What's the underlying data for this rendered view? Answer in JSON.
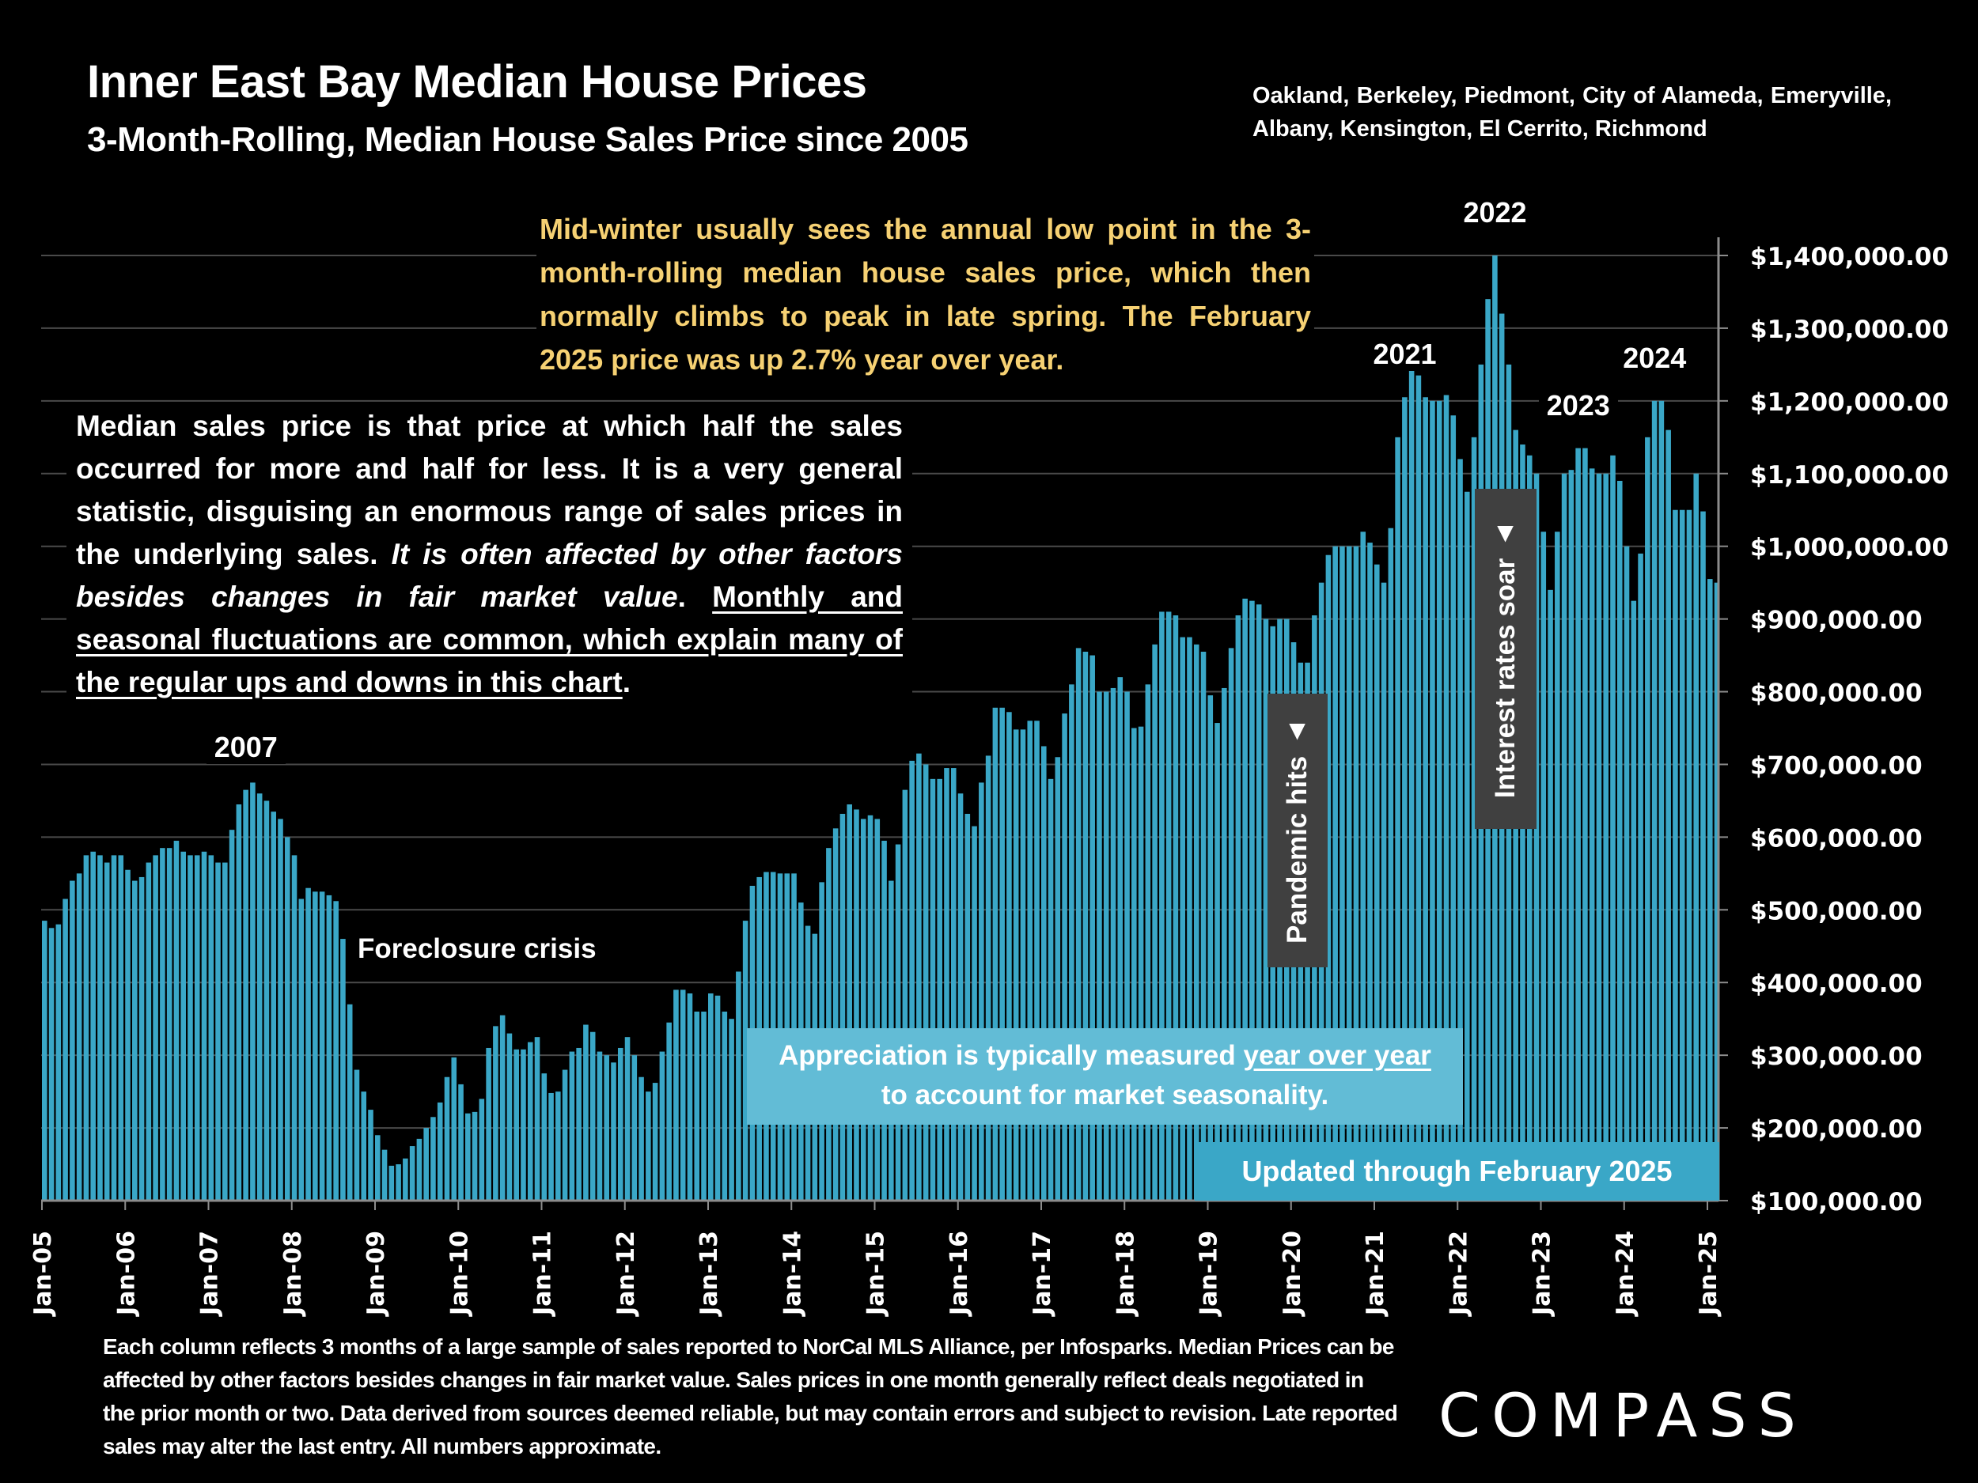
{
  "header": {
    "title": "Inner East Bay Median House Prices",
    "subtitle": "3-Month-Rolling, Median House Sales Price since 2005",
    "regions": "Oakland, Berkeley, Piedmont, City of Alameda, Emeryville, Albany, Kensington, El Cerrito, Richmond"
  },
  "annotations": {
    "seasonal_note": "Mid-winter usually sees the annual low point in the 3-month-rolling median house sales price, which then normally climbs to peak in late spring. The February 2025 price was up 2.7% year over year.",
    "median_note_plain": "Median sales price is that price at which half the sales occurred for more and half for less. It is a very general statistic, disguising an enormous range of sales prices in the underlying sales. ",
    "median_note_italic": "It is often affected by other factors besides changes in fair market value",
    "median_note_period": ". ",
    "median_note_underlined": "Monthly and seasonal fluctuations are common, which explain many of the regular ups and downs in this chart",
    "median_note_end": ".",
    "foreclosure": "Foreclosure crisis",
    "appreciation_line1_plain": "Appreciation is typically measured ",
    "appreciation_line1_underlined": "year over year",
    "appreciation_line2": "to account for market seasonality.",
    "updated": "Updated through February 2025",
    "pandemic": "Pandemic hits",
    "rates": "Interest rates soar",
    "arrow_glyph": "▲",
    "year_labels": [
      {
        "label": "2007",
        "index": 29
      },
      {
        "label": "2021",
        "index": 196
      },
      {
        "label": "2022",
        "index": 209
      },
      {
        "label": "2023",
        "index": 221
      },
      {
        "label": "2024",
        "index": 232
      }
    ]
  },
  "footer": {
    "footnote": "Each column reflects 3 months of a large sample of sales reported to NorCal MLS Alliance, per Infosparks. Median Prices can be affected by other factors besides changes in fair market value. Sales prices in one month generally reflect deals negotiated in the prior month or two. Data derived from sources deemed reliable, but may contain errors and subject to revision. Late reported sales may alter the last entry. All numbers approximate.",
    "logo": "COMPASS"
  },
  "colors": {
    "background": "#000000",
    "bar": "#3aa7c7",
    "gridline": "#4a4a4a",
    "axis": "#8c8c8c",
    "seasonal_note": "#f6d173",
    "appreciation_box": "#62bcd6",
    "updated_box": "#3aa7c7",
    "event_box": "#404040"
  },
  "chart_data": {
    "type": "bar",
    "title": "Inner East Bay Median House Prices",
    "subtitle": "3-Month-Rolling, Median House Sales Price since 2005",
    "xlabel": "",
    "ylabel": "",
    "y_axis_side": "right",
    "ylim": [
      100000,
      1400000
    ],
    "y_ticks": [
      1400000,
      1300000,
      1200000,
      1100000,
      1000000,
      900000,
      800000,
      700000,
      600000,
      500000,
      400000,
      300000,
      200000,
      100000
    ],
    "y_tick_labels": [
      "$1,400,000.00",
      "$1,300,000.00",
      "$1,200,000.00",
      "$1,100,000.00",
      "$1,000,000.00",
      "$900,000.00",
      "$800,000.00",
      "$700,000.00",
      "$600,000.00",
      "$500,000.00",
      "$400,000.00",
      "$300,000.00",
      "$200,000.00",
      "$100,000.00"
    ],
    "x_tick_labels": [
      "Jan-05",
      "Jan-06",
      "Jan-07",
      "Jan-08",
      "Jan-09",
      "Jan-10",
      "Jan-11",
      "Jan-12",
      "Jan-13",
      "Jan-14",
      "Jan-15",
      "Jan-16",
      "Jan-17",
      "Jan-18",
      "Jan-19",
      "Jan-20",
      "Jan-21",
      "Jan-22",
      "Jan-23",
      "Jan-24",
      "Jan-25"
    ],
    "grid": true,
    "first_period": "Jan-05",
    "last_period": "Feb-25",
    "frequency": "monthly",
    "values": [
      485000,
      475000,
      480000,
      515000,
      540000,
      550000,
      575000,
      580000,
      575000,
      565000,
      575000,
      575000,
      555000,
      540000,
      545000,
      565000,
      575000,
      585000,
      585000,
      595000,
      580000,
      575000,
      575000,
      580000,
      575000,
      565000,
      565000,
      610000,
      645000,
      665000,
      675000,
      660000,
      650000,
      635000,
      625000,
      600000,
      575000,
      515000,
      530000,
      525000,
      525000,
      520000,
      512000,
      460000,
      370000,
      280000,
      250000,
      225000,
      190000,
      170000,
      148000,
      150000,
      158000,
      175000,
      185000,
      200000,
      215000,
      235000,
      270000,
      297000,
      260000,
      220000,
      222000,
      240000,
      310000,
      340000,
      355000,
      330000,
      308000,
      308000,
      318000,
      325000,
      275000,
      248000,
      250000,
      280000,
      305000,
      310000,
      342000,
      332000,
      305000,
      300000,
      290000,
      310000,
      325000,
      300000,
      270000,
      250000,
      262000,
      305000,
      345000,
      390000,
      390000,
      385000,
      360000,
      360000,
      385000,
      382000,
      360000,
      350000,
      415000,
      485000,
      533000,
      545000,
      552000,
      552000,
      550000,
      550000,
      550000,
      510000,
      478000,
      467000,
      538000,
      585000,
      612000,
      632000,
      645000,
      638000,
      625000,
      630000,
      625000,
      595000,
      540000,
      590000,
      665000,
      705000,
      715000,
      700000,
      680000,
      680000,
      695000,
      695000,
      660000,
      632000,
      615000,
      675000,
      712000,
      778000,
      778000,
      772000,
      748000,
      748000,
      760000,
      760000,
      725000,
      680000,
      710000,
      770000,
      810000,
      860000,
      855000,
      850000,
      800000,
      800000,
      805000,
      820000,
      800000,
      750000,
      752000,
      810000,
      865000,
      910000,
      910000,
      905000,
      875000,
      875000,
      865000,
      855000,
      795000,
      757000,
      805000,
      860000,
      905000,
      928000,
      925000,
      920000,
      900000,
      890000,
      900000,
      900000,
      868000,
      840000,
      840000,
      905000,
      950000,
      988000,
      1000000,
      1000000,
      1000000,
      1000000,
      1020000,
      1005000,
      975000,
      950000,
      1025000,
      1150000,
      1205000,
      1260000,
      1235000,
      1205000,
      1200000,
      1200000,
      1208000,
      1180000,
      1120000,
      1075000,
      1150000,
      1250000,
      1340000,
      1400000,
      1320000,
      1250000,
      1160000,
      1140000,
      1125000,
      1100000,
      1020000,
      940000,
      1020000,
      1100000,
      1105000,
      1135000,
      1135000,
      1107000,
      1100000,
      1100000,
      1125000,
      1090000,
      1000000,
      925000,
      990000,
      1150000,
      1200000,
      1200000,
      1160000,
      1050000,
      1050000,
      1050000,
      1100000,
      1048000,
      955000,
      950000
    ]
  }
}
